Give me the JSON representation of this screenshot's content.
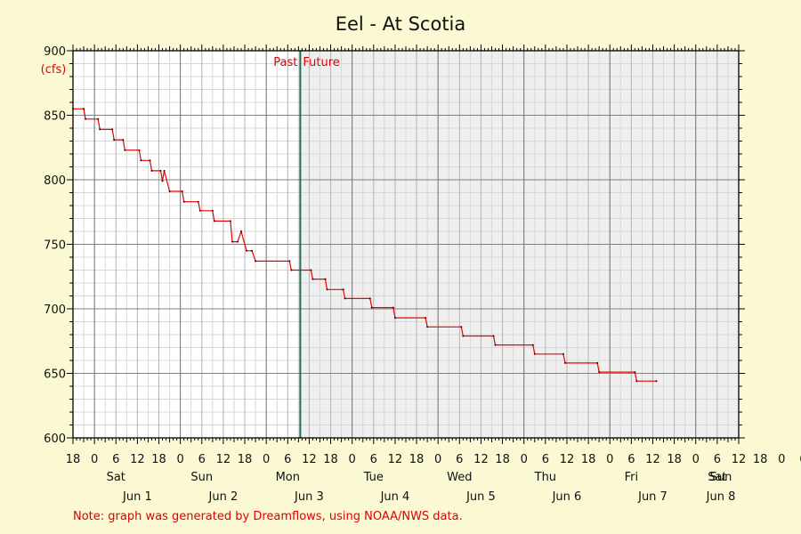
{
  "chart_data": {
    "type": "line",
    "title": "Eel - At Scotia",
    "ylabel": "(cfs)",
    "ylim": [
      600,
      900
    ],
    "yticks": [
      600,
      650,
      700,
      750,
      800,
      850,
      900
    ],
    "xlim": [
      "2025-05-31T18:00",
      "2025-06-08T12:00"
    ],
    "x_hour_ticks": [
      "18",
      "0",
      "6",
      "12",
      "18",
      "0",
      "6",
      "12",
      "18",
      "0",
      "6",
      "12",
      "18",
      "0",
      "6",
      "12",
      "18",
      "0",
      "6",
      "12",
      "18",
      "0",
      "6",
      "12",
      "18",
      "0",
      "6",
      "12",
      "18",
      "0",
      "6",
      "12",
      "18",
      "0",
      "6",
      "12"
    ],
    "day_names": [
      "Sat",
      "Sun",
      "Mon",
      "Tue",
      "Wed",
      "Thu",
      "Fri",
      "Sat",
      "Sun"
    ],
    "date_labels": [
      "Jun 1",
      "Jun 2",
      "Jun 3",
      "Jun 4",
      "Jun 5",
      "Jun 6",
      "Jun 7",
      "Jun 8"
    ],
    "now": "2025-06-03T09:30",
    "past_label": "Past",
    "future_label": "Future",
    "grid": true,
    "series": [
      {
        "color": "#ee0000",
        "points": [
          [
            "2025-05-31T18:00",
            855
          ],
          [
            "2025-05-31T21:00",
            855
          ],
          [
            "2025-05-31T21:30",
            847
          ],
          [
            "2025-06-01T01:00",
            847
          ],
          [
            "2025-06-01T01:30",
            839
          ],
          [
            "2025-06-01T05:00",
            839
          ],
          [
            "2025-06-01T05:30",
            831
          ],
          [
            "2025-06-01T08:00",
            831
          ],
          [
            "2025-06-01T08:30",
            823
          ],
          [
            "2025-06-01T12:30",
            823
          ],
          [
            "2025-06-01T13:00",
            815
          ],
          [
            "2025-06-01T15:30",
            815
          ],
          [
            "2025-06-01T16:00",
            807
          ],
          [
            "2025-06-01T18:30",
            807
          ],
          [
            "2025-06-01T19:00",
            799
          ],
          [
            "2025-06-01T19:30",
            807
          ],
          [
            "2025-06-01T21:00",
            791
          ],
          [
            "2025-06-02T00:30",
            791
          ],
          [
            "2025-06-02T01:00",
            783
          ],
          [
            "2025-06-02T05:00",
            783
          ],
          [
            "2025-06-02T05:30",
            776
          ],
          [
            "2025-06-02T09:00",
            776
          ],
          [
            "2025-06-02T09:30",
            768
          ],
          [
            "2025-06-02T14:00",
            768
          ],
          [
            "2025-06-02T14:30",
            752
          ],
          [
            "2025-06-02T16:00",
            752
          ],
          [
            "2025-06-02T17:00",
            760
          ],
          [
            "2025-06-02T18:30",
            745
          ],
          [
            "2025-06-02T20:00",
            745
          ],
          [
            "2025-06-02T21:00",
            737
          ],
          [
            "2025-06-03T06:30",
            737
          ],
          [
            "2025-06-03T07:00",
            730
          ],
          [
            "2025-06-03T12:30",
            730
          ],
          [
            "2025-06-03T13:00",
            723
          ],
          [
            "2025-06-03T16:30",
            723
          ],
          [
            "2025-06-03T17:00",
            715
          ],
          [
            "2025-06-03T21:30",
            715
          ],
          [
            "2025-06-03T22:00",
            708
          ],
          [
            "2025-06-04T05:00",
            708
          ],
          [
            "2025-06-04T05:30",
            701
          ],
          [
            "2025-06-04T11:30",
            701
          ],
          [
            "2025-06-04T12:00",
            693
          ],
          [
            "2025-06-04T20:30",
            693
          ],
          [
            "2025-06-04T21:00",
            686
          ],
          [
            "2025-06-05T06:30",
            686
          ],
          [
            "2025-06-05T07:00",
            679
          ],
          [
            "2025-06-05T15:30",
            679
          ],
          [
            "2025-06-05T16:00",
            672
          ],
          [
            "2025-06-06T02:30",
            672
          ],
          [
            "2025-06-06T03:00",
            665
          ],
          [
            "2025-06-06T11:00",
            665
          ],
          [
            "2025-06-06T11:30",
            658
          ],
          [
            "2025-06-06T20:30",
            658
          ],
          [
            "2025-06-06T21:00",
            651
          ],
          [
            "2025-06-07T07:00",
            651
          ],
          [
            "2025-06-07T07:30",
            644
          ],
          [
            "2025-06-07T13:00",
            644
          ]
        ]
      }
    ],
    "note": "Note: graph was generated by Dreamflows, using NOAA/NWS data."
  }
}
